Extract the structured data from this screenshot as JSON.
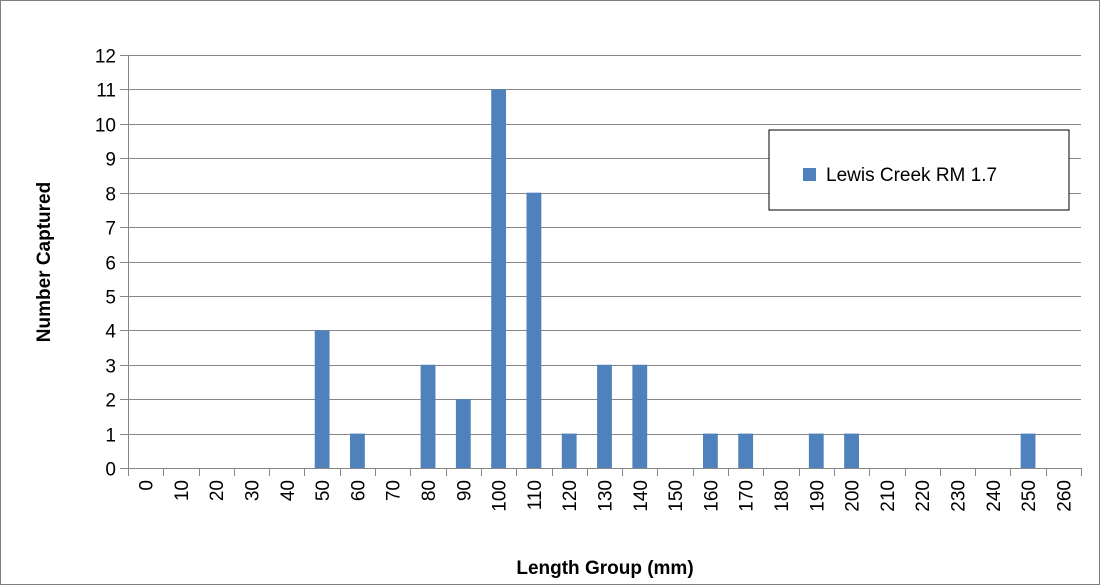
{
  "chart_data": {
    "type": "bar",
    "categories": [
      "0",
      "10",
      "20",
      "30",
      "40",
      "50",
      "60",
      "70",
      "80",
      "90",
      "100",
      "110",
      "120",
      "130",
      "140",
      "150",
      "160",
      "170",
      "180",
      "190",
      "200",
      "210",
      "220",
      "230",
      "240",
      "250",
      "260"
    ],
    "series": [
      {
        "name": "Lewis Creek RM 1.7",
        "color": "#4f81bd",
        "values": [
          0,
          0,
          0,
          0,
          0,
          4,
          1,
          0,
          3,
          2,
          11,
          8,
          1,
          3,
          3,
          0,
          1,
          1,
          0,
          1,
          1,
          0,
          0,
          0,
          0,
          1,
          0
        ]
      }
    ],
    "title": "",
    "xlabel": "Length Group (mm)",
    "ylabel": "Number Captured",
    "ylim": [
      0,
      12
    ],
    "yticks": [
      0,
      1,
      2,
      3,
      4,
      5,
      6,
      7,
      8,
      9,
      10,
      11,
      12
    ],
    "grid": "horizontal",
    "legend": "right"
  }
}
